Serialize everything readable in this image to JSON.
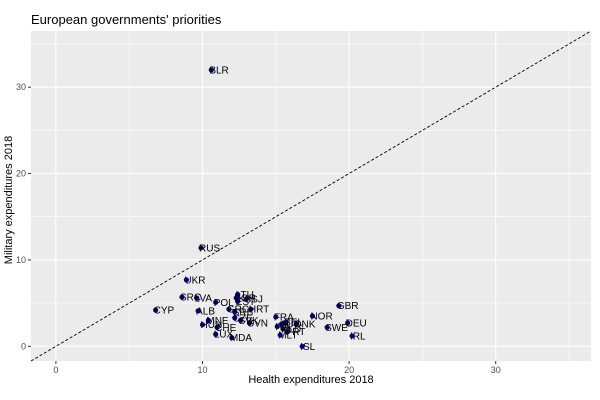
{
  "chart_data": {
    "type": "scatter",
    "title": "European governments' priorities",
    "xlabel": "Health expenditures 2018",
    "ylabel": "Military expenditures 2018",
    "xlim": [
      -1.7,
      36.5
    ],
    "ylim": [
      -1.7,
      36.5
    ],
    "x_ticks": [
      0,
      10,
      20,
      30
    ],
    "y_ticks": [
      0,
      10,
      20,
      30
    ],
    "grid": true,
    "reference_line": {
      "slope": 1,
      "intercept": 0,
      "style": "dashed"
    },
    "point_color": "#00008B",
    "panel_color": "#EBEBEB",
    "grid_color": "#FFFFFF",
    "points": [
      {
        "label": "BLR",
        "x": 10.6,
        "y": 32.0
      },
      {
        "label": "RUS",
        "x": 9.9,
        "y": 11.4
      },
      {
        "label": "UKR",
        "x": 8.9,
        "y": 7.7
      },
      {
        "label": "SRC",
        "x": 8.6,
        "y": 5.7
      },
      {
        "label": "LVA",
        "x": 9.6,
        "y": 5.6
      },
      {
        "label": "CYP",
        "x": 6.8,
        "y": 4.2
      },
      {
        "label": "POL",
        "x": 10.9,
        "y": 5.1
      },
      {
        "label": "LTU",
        "x": 12.4,
        "y": 6.0
      },
      {
        "label": "BGR",
        "x": 12.3,
        "y": 5.6
      },
      {
        "label": "SSJ",
        "x": 13.0,
        "y": 5.5
      },
      {
        "label": "EST",
        "x": 12.4,
        "y": 5.2
      },
      {
        "label": "ALB",
        "x": 9.7,
        "y": 4.1
      },
      {
        "label": "GRC",
        "x": 11.8,
        "y": 4.3
      },
      {
        "label": "HRT",
        "x": 13.3,
        "y": 4.3
      },
      {
        "label": "SRB",
        "x": 12.2,
        "y": 4.0
      },
      {
        "label": "CZE",
        "x": 12.2,
        "y": 3.3
      },
      {
        "label": "FRA",
        "x": 15.0,
        "y": 3.4
      },
      {
        "label": "SVK",
        "x": 12.6,
        "y": 3.0
      },
      {
        "label": "SVN",
        "x": 13.2,
        "y": 2.7
      },
      {
        "label": "MNE",
        "x": 10.4,
        "y": 3.0
      },
      {
        "label": "HUN",
        "x": 10.0,
        "y": 2.5
      },
      {
        "label": "CHE",
        "x": 11.0,
        "y": 2.2
      },
      {
        "label": "BEL",
        "x": 15.7,
        "y": 2.8
      },
      {
        "label": "AUT",
        "x": 15.4,
        "y": 2.6
      },
      {
        "label": "ITA",
        "x": 15.1,
        "y": 2.3
      },
      {
        "label": "DNK",
        "x": 16.4,
        "y": 2.6
      },
      {
        "label": "NLD",
        "x": 15.5,
        "y": 2.0
      },
      {
        "label": "PRT",
        "x": 15.8,
        "y": 1.7
      },
      {
        "label": "MLT",
        "x": 15.3,
        "y": 1.3
      },
      {
        "label": "NOR",
        "x": 17.5,
        "y": 3.5
      },
      {
        "label": "GBR",
        "x": 19.3,
        "y": 4.7
      },
      {
        "label": "DEU",
        "x": 19.9,
        "y": 2.7
      },
      {
        "label": "SWE",
        "x": 18.5,
        "y": 2.2
      },
      {
        "label": "IRL",
        "x": 20.2,
        "y": 1.2
      },
      {
        "label": "LUX",
        "x": 10.9,
        "y": 1.4
      },
      {
        "label": "MDA",
        "x": 12.0,
        "y": 1.0
      },
      {
        "label": "ISL",
        "x": 16.8,
        "y": 0.0
      }
    ]
  }
}
